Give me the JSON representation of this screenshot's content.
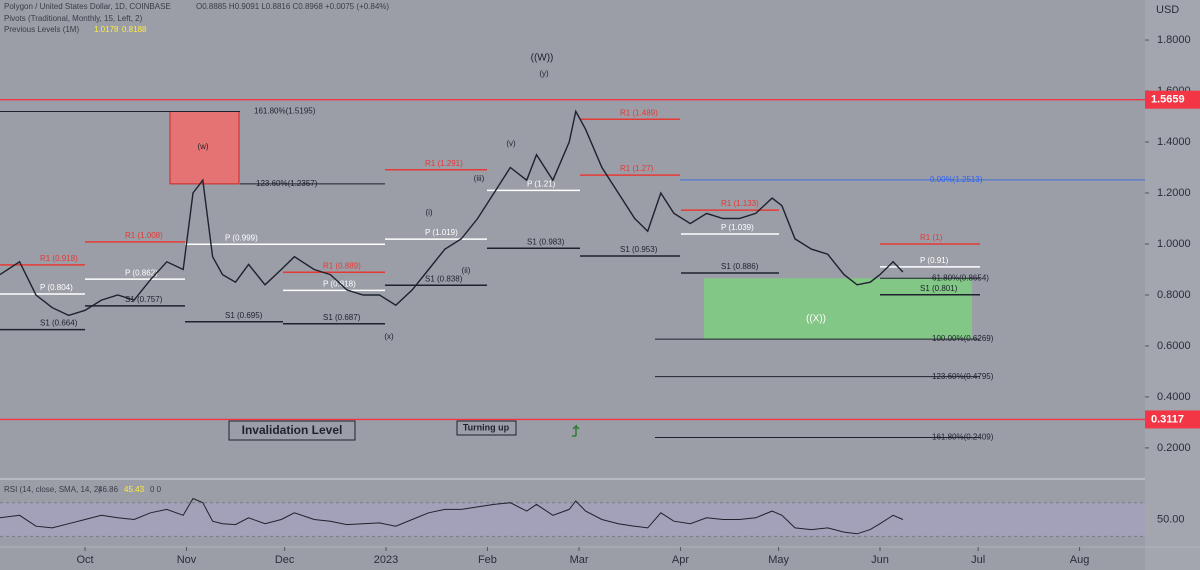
{
  "chart_data": {
    "type": "line",
    "title": "Polygon / United States Dollar, 1D, COINBASE",
    "ohlc": "O0.8885 H0.9091 L0.8816 C0.8968 +0.0075 (+0.84%)",
    "indicator": "Pivots (Traditional, Monthly, 15, Left, 2)",
    "previous_levels": {
      "label": "Previous Levels (1M)",
      "high": 1.0178,
      "low": 0.8188
    },
    "currency": "USD",
    "x": [
      -26,
      -20,
      -15,
      -10,
      -5,
      0,
      5,
      10,
      15,
      20,
      25,
      30,
      33,
      36,
      39,
      42,
      46,
      50,
      55,
      60,
      64,
      70,
      75,
      80,
      85,
      90,
      95,
      100,
      105,
      110,
      115,
      120,
      125,
      130,
      135,
      138,
      143,
      148,
      150,
      153,
      158,
      163,
      168,
      172,
      176,
      180,
      185,
      190,
      195,
      200,
      205,
      210,
      213,
      217,
      222,
      227,
      232,
      236,
      240,
      243,
      247,
      250
    ],
    "series": [
      {
        "name": "Polygon",
        "color": "#1e222d",
        "values": [
          0.88,
          0.93,
          0.8,
          0.75,
          0.72,
          0.74,
          0.78,
          0.8,
          0.78,
          0.86,
          0.93,
          0.9,
          1.2,
          1.25,
          0.95,
          0.88,
          0.85,
          0.92,
          0.84,
          0.9,
          0.95,
          0.9,
          0.88,
          0.82,
          0.8,
          0.8,
          0.76,
          0.82,
          0.9,
          0.98,
          1.02,
          1.1,
          1.2,
          1.3,
          1.25,
          1.35,
          1.25,
          1.4,
          1.52,
          1.45,
          1.3,
          1.2,
          1.1,
          1.05,
          1.2,
          1.12,
          1.08,
          1.12,
          1.1,
          1.1,
          1.12,
          1.18,
          1.15,
          1.02,
          0.98,
          0.96,
          0.88,
          0.84,
          0.85,
          0.88,
          0.93,
          0.89
        ]
      }
    ],
    "xlim": [
      -26,
      324
    ],
    "xticks": [
      {
        "value": 0,
        "label": "Oct"
      },
      {
        "value": 31,
        "label": "Nov"
      },
      {
        "value": 61,
        "label": "Dec"
      },
      {
        "value": 92,
        "label": "2023"
      },
      {
        "value": 123,
        "label": "Feb"
      },
      {
        "value": 151,
        "label": "Mar"
      },
      {
        "value": 182,
        "label": "Apr"
      },
      {
        "value": 212,
        "label": "May"
      },
      {
        "value": 243,
        "label": "Jun"
      },
      {
        "value": 273,
        "label": "Jul"
      },
      {
        "value": 304,
        "label": "Aug"
      }
    ],
    "ylim": [
      0.082,
      1.957
    ],
    "yticks": [
      {
        "value": 0.2,
        "label": "0.2000"
      },
      {
        "value": 0.4,
        "label": "0.4000"
      },
      {
        "value": 0.6,
        "label": "0.6000"
      },
      {
        "value": 0.8,
        "label": "0.8000"
      },
      {
        "value": 1,
        "label": "1.0000"
      },
      {
        "value": 1.2,
        "label": "1.2000"
      },
      {
        "value": 1.4,
        "label": "1.4000"
      },
      {
        "value": 1.6,
        "label": "1.6000"
      },
      {
        "value": 1.8,
        "label": "1.8000"
      }
    ],
    "price_marks": [
      {
        "value": 1.5659,
        "label": "1.5659"
      },
      {
        "value": 0.3117,
        "label": "0.3117"
      }
    ],
    "levels": [
      {
        "label": "P (0.804)",
        "value": 0.804,
        "color": "#ffffff"
      },
      {
        "label": "S1 (0.664)",
        "value": 0.664,
        "color": "#1e222d"
      },
      {
        "label": "R1 (0.918)",
        "value": 0.918,
        "color": "#e53935"
      },
      {
        "label": "R1 (1.008)",
        "value": 1.008,
        "color": "#e53935"
      },
      {
        "label": "P (0.862)",
        "value": 0.862,
        "color": "#ffffff"
      },
      {
        "label": "S1 (0.757)",
        "value": 0.757,
        "color": "#1e222d"
      },
      {
        "label": "P (0.999)",
        "value": 0.999,
        "color": "#ffffff"
      },
      {
        "label": "S1 (0.695)",
        "value": 0.695,
        "color": "#1e222d"
      },
      {
        "label": "R1 (0.889)",
        "value": 0.889,
        "color": "#e53935"
      },
      {
        "label": "P (0.818)",
        "value": 0.818,
        "color": "#ffffff"
      },
      {
        "label": "S1 (0.687)",
        "value": 0.687,
        "color": "#1e222d"
      },
      {
        "label": "P (1.019)",
        "value": 1.019,
        "color": "#ffffff"
      },
      {
        "label": "S1 (0.838)",
        "value": 0.838,
        "color": "#1e222d"
      },
      {
        "label": "R1 (1.291)",
        "value": 1.291,
        "color": "#e53935"
      },
      {
        "label": "P (1.21)",
        "value": 1.21,
        "color": "#ffffff"
      },
      {
        "label": "S1 (0.983)",
        "value": 0.983,
        "color": "#1e222d"
      },
      {
        "label": "R1 (1.489)",
        "value": 1.489,
        "color": "#e53935"
      },
      {
        "label": "R1 (1.27)",
        "value": 1.27,
        "color": "#e53935"
      },
      {
        "label": "S1 (0.953)",
        "value": 0.953,
        "color": "#1e222d"
      },
      {
        "label": "R1 (1.133)",
        "value": 1.133,
        "color": "#e53935"
      },
      {
        "label": "P (1.039)",
        "value": 1.039,
        "color": "#ffffff"
      },
      {
        "label": "S1 (0.886)",
        "value": 0.886,
        "color": "#1e222d"
      },
      {
        "label": "R1 (1)",
        "value": 1.0,
        "color": "#e53935"
      },
      {
        "label": "P (0.91)",
        "value": 0.91,
        "color": "#ffffff"
      },
      {
        "label": "S1 (0.801)",
        "value": 0.801,
        "color": "#1e222d"
      }
    ],
    "fib_levels": [
      {
        "label": "161.80%(1.5195)",
        "value": 1.5195
      },
      {
        "label": "123.60%(1.2357)",
        "value": 1.2357
      },
      {
        "label": "0.00%(1.2513)",
        "value": 1.2513
      },
      {
        "label": "61.80%(0.8654)",
        "value": 0.8654
      },
      {
        "label": "100.00%(0.6269)",
        "value": 0.6269
      },
      {
        "label": "123.60%(0.4795)",
        "value": 0.4795
      },
      {
        "label": "161.80%(0.2409)",
        "value": 0.2409
      }
    ],
    "annotations": [
      "((W))",
      "(y)",
      "(w)",
      "(x)",
      "((X))",
      "(i)",
      "(ii)",
      "(iii)",
      "(v)",
      "Invalidation Level",
      "Turning up"
    ],
    "rsi": {
      "label": "RSI (14, close, SMA, 14, 2)",
      "value": 46.86,
      "sma": 45.43,
      "extra": "0 0",
      "ylim": [
        18.5,
        97
      ],
      "yticks": [
        {
          "value": 50,
          "label": "50.00"
        }
      ],
      "bands": [
        70,
        30
      ],
      "values": [
        52,
        55,
        42,
        40,
        45,
        50,
        55,
        52,
        50,
        58,
        62,
        55,
        75,
        70,
        48,
        45,
        44,
        52,
        45,
        50,
        58,
        50,
        48,
        44,
        45,
        46,
        42,
        50,
        58,
        62,
        62,
        65,
        68,
        70,
        60,
        68,
        55,
        62,
        72,
        60,
        50,
        45,
        42,
        40,
        58,
        48,
        45,
        52,
        50,
        50,
        52,
        60,
        55,
        40,
        38,
        40,
        35,
        33,
        38,
        45,
        55,
        50
      ]
    }
  }
}
